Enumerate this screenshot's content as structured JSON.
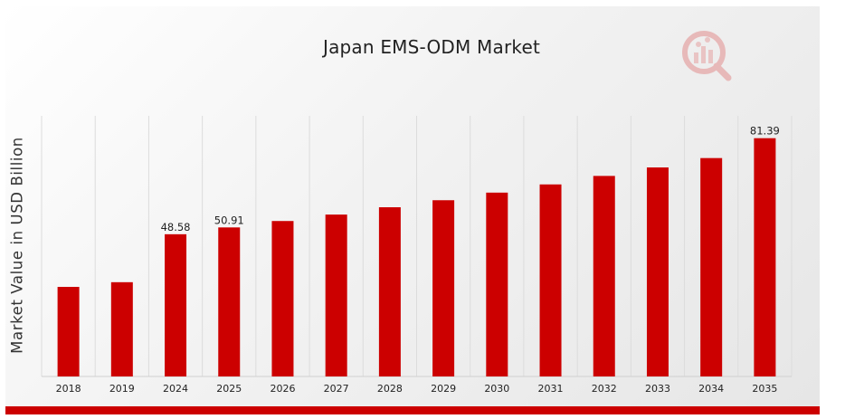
{
  "chart_data": {
    "type": "bar",
    "title": "Japan EMS-ODM Market",
    "xlabel": "",
    "ylabel": "Market Value in USD Billion",
    "categories": [
      "2018",
      "2019",
      "2024",
      "2025",
      "2026",
      "2027",
      "2028",
      "2029",
      "2030",
      "2031",
      "2032",
      "2033",
      "2034",
      "2035"
    ],
    "values": [
      30.6,
      32.2,
      48.58,
      50.91,
      53.1,
      55.3,
      57.8,
      60.2,
      62.8,
      65.6,
      68.5,
      71.4,
      74.6,
      81.39
    ],
    "data_labels": [
      "",
      "",
      "48.58",
      "50.91",
      "",
      "",
      "",
      "",
      "",
      "",
      "",
      "",
      "",
      "81.39"
    ],
    "bar_color": "#cc0000",
    "grid": "vertical",
    "legend": "none"
  },
  "branding": {
    "logo_icon": "magnifier-chart-logo-icon",
    "accent_color": "#cc0000"
  }
}
